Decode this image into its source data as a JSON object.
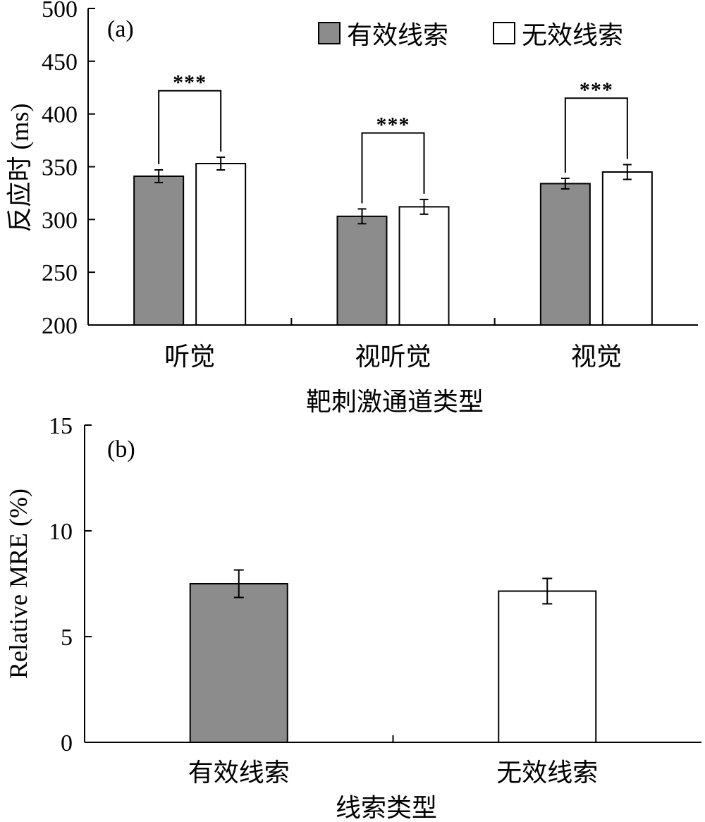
{
  "colors": {
    "effective_cue": "#8c8c8c",
    "ineffective_cue": "#ffffff",
    "axis": "#000000"
  },
  "chart_data": [
    {
      "type": "bar",
      "panel_label": "(a)",
      "title": "",
      "categories": [
        "听觉",
        "视听觉",
        "视觉"
      ],
      "series": [
        {
          "name": "有效线索",
          "values": [
            341,
            303,
            334
          ],
          "errors": [
            6,
            7,
            5
          ],
          "color": "#8c8c8c"
        },
        {
          "name": "无效线索",
          "values": [
            353,
            312,
            345
          ],
          "errors": [
            6,
            7,
            7
          ],
          "color": "#ffffff"
        }
      ],
      "significance": [
        "***",
        "***",
        "***"
      ],
      "xlabel": "靶刺激通道类型",
      "ylabel": "反应时 (ms)",
      "ylim": [
        200,
        500
      ],
      "yticks": [
        200,
        250,
        300,
        350,
        400,
        450,
        500
      ],
      "legend": "top-right",
      "grid": false
    },
    {
      "type": "bar",
      "panel_label": "(b)",
      "title": "",
      "categories": [
        "有效线索",
        "无效线索"
      ],
      "values": [
        7.5,
        7.15
      ],
      "errors": [
        0.65,
        0.6
      ],
      "colors": [
        "#8c8c8c",
        "#ffffff"
      ],
      "xlabel": "线索类型",
      "ylabel": "Relative MRE (%)",
      "ylim": [
        0,
        15
      ],
      "yticks": [
        0,
        5,
        10,
        15
      ],
      "grid": false
    }
  ]
}
